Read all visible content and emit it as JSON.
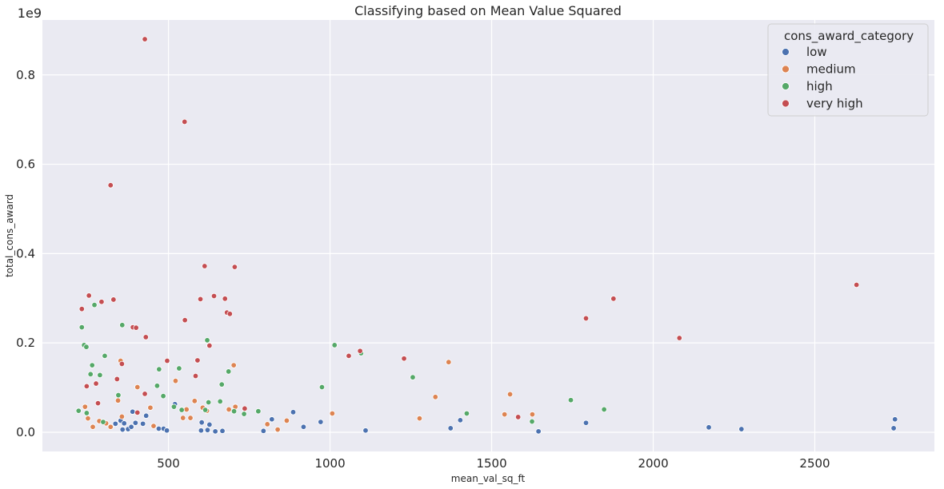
{
  "chart_data": {
    "type": "scatter",
    "title": "Classifying based on Mean Value Squared",
    "xlabel": "mean_val_sq_ft",
    "ylabel": "total_cons_award",
    "y_offset_text": "1e9",
    "xlim": [
      110,
      2870
    ],
    "ylim": [
      -0.043,
      0.923
    ],
    "x_ticks": [
      500,
      1000,
      1500,
      2000,
      2500
    ],
    "x_tick_labels": [
      "500",
      "1000",
      "1500",
      "2000",
      "2500"
    ],
    "y_ticks": [
      0.0,
      0.2,
      0.4,
      0.6,
      0.8
    ],
    "y_tick_labels": [
      "0.0",
      "0.2",
      "0.4",
      "0.6",
      "0.8"
    ],
    "grid": true,
    "legend_position": "top-right",
    "legend_title": "cons_award_category",
    "colors": {
      "background": "#eaeaf2",
      "grid": "#ffffff",
      "low": "#4c72b0",
      "medium": "#dd8452",
      "high": "#55a868",
      "very high": "#c44e52"
    },
    "series": [
      {
        "name": "low",
        "points": [
          [
            336,
            0.019
          ],
          [
            352,
            0.026
          ],
          [
            358,
            0.006
          ],
          [
            363,
            0.02
          ],
          [
            375,
            0.007
          ],
          [
            385,
            0.012
          ],
          [
            389,
            0.046
          ],
          [
            398,
            0.021
          ],
          [
            421,
            0.019
          ],
          [
            431,
            0.037
          ],
          [
            470,
            0.008
          ],
          [
            485,
            0.008
          ],
          [
            495,
            0.004
          ],
          [
            520,
            0.063
          ],
          [
            601,
            0.004
          ],
          [
            603,
            0.022
          ],
          [
            621,
            0.005
          ],
          [
            627,
            0.017
          ],
          [
            645,
            0.002
          ],
          [
            667,
            0.003
          ],
          [
            794,
            0.003
          ],
          [
            820,
            0.029
          ],
          [
            886,
            0.045
          ],
          [
            918,
            0.012
          ],
          [
            971,
            0.023
          ],
          [
            1110,
            0.004
          ],
          [
            1373,
            0.009
          ],
          [
            1403,
            0.027
          ],
          [
            1645,
            0.002
          ],
          [
            1792,
            0.021
          ],
          [
            2172,
            0.011
          ],
          [
            2273,
            0.007
          ],
          [
            2744,
            0.009
          ],
          [
            2748,
            0.029
          ]
        ]
      },
      {
        "name": "medium",
        "points": [
          [
            242,
            0.057
          ],
          [
            251,
            0.031
          ],
          [
            266,
            0.012
          ],
          [
            286,
            0.025
          ],
          [
            307,
            0.02
          ],
          [
            321,
            0.012
          ],
          [
            344,
            0.071
          ],
          [
            352,
            0.16
          ],
          [
            356,
            0.035
          ],
          [
            404,
            0.101
          ],
          [
            444,
            0.055
          ],
          [
            454,
            0.014
          ],
          [
            522,
            0.115
          ],
          [
            545,
            0.032
          ],
          [
            556,
            0.051
          ],
          [
            568,
            0.032
          ],
          [
            581,
            0.07
          ],
          [
            606,
            0.055
          ],
          [
            619,
            0.048
          ],
          [
            687,
            0.051
          ],
          [
            702,
            0.15
          ],
          [
            707,
            0.057
          ],
          [
            806,
            0.018
          ],
          [
            838,
            0.006
          ],
          [
            866,
            0.026
          ],
          [
            1007,
            0.042
          ],
          [
            1277,
            0.031
          ],
          [
            1326,
            0.079
          ],
          [
            1367,
            0.157
          ],
          [
            1540,
            0.04
          ],
          [
            1557,
            0.085
          ],
          [
            1626,
            0.04
          ]
        ]
      },
      {
        "name": "high",
        "points": [
          [
            222,
            0.048
          ],
          [
            232,
            0.235
          ],
          [
            239,
            0.195
          ],
          [
            246,
            0.191
          ],
          [
            247,
            0.043
          ],
          [
            259,
            0.13
          ],
          [
            264,
            0.15
          ],
          [
            271,
            0.285
          ],
          [
            288,
            0.128
          ],
          [
            298,
            0.023
          ],
          [
            303,
            0.171
          ],
          [
            345,
            0.083
          ],
          [
            357,
            0.24
          ],
          [
            465,
            0.104
          ],
          [
            471,
            0.141
          ],
          [
            484,
            0.081
          ],
          [
            517,
            0.057
          ],
          [
            533,
            0.143
          ],
          [
            541,
            0.05
          ],
          [
            614,
            0.05
          ],
          [
            620,
            0.206
          ],
          [
            624,
            0.067
          ],
          [
            660,
            0.069
          ],
          [
            665,
            0.107
          ],
          [
            686,
            0.136
          ],
          [
            703,
            0.047
          ],
          [
            734,
            0.041
          ],
          [
            778,
            0.047
          ],
          [
            975,
            0.101
          ],
          [
            1014,
            0.195
          ],
          [
            1096,
            0.177
          ],
          [
            1256,
            0.123
          ],
          [
            1423,
            0.042
          ],
          [
            1625,
            0.024
          ],
          [
            1745,
            0.072
          ],
          [
            1848,
            0.051
          ]
        ]
      },
      {
        "name": "very high",
        "points": [
          [
            232,
            0.276
          ],
          [
            247,
            0.103
          ],
          [
            254,
            0.306
          ],
          [
            276,
            0.109
          ],
          [
            282,
            0.065
          ],
          [
            293,
            0.292
          ],
          [
            321,
            0.553
          ],
          [
            330,
            0.297
          ],
          [
            341,
            0.119
          ],
          [
            356,
            0.153
          ],
          [
            390,
            0.235
          ],
          [
            400,
            0.234
          ],
          [
            404,
            0.044
          ],
          [
            427,
            0.88
          ],
          [
            430,
            0.213
          ],
          [
            427,
            0.086
          ],
          [
            496,
            0.16
          ],
          [
            550,
            0.695
          ],
          [
            551,
            0.251
          ],
          [
            584,
            0.126
          ],
          [
            590,
            0.161
          ],
          [
            599,
            0.298
          ],
          [
            612,
            0.372
          ],
          [
            627,
            0.194
          ],
          [
            641,
            0.305
          ],
          [
            675,
            0.299
          ],
          [
            681,
            0.268
          ],
          [
            690,
            0.265
          ],
          [
            705,
            0.37
          ],
          [
            736,
            0.053
          ],
          [
            1058,
            0.171
          ],
          [
            1093,
            0.182
          ],
          [
            1229,
            0.165
          ],
          [
            1582,
            0.034
          ],
          [
            1792,
            0.255
          ],
          [
            1877,
            0.299
          ],
          [
            2081,
            0.211
          ],
          [
            2629,
            0.33
          ]
        ]
      }
    ]
  }
}
